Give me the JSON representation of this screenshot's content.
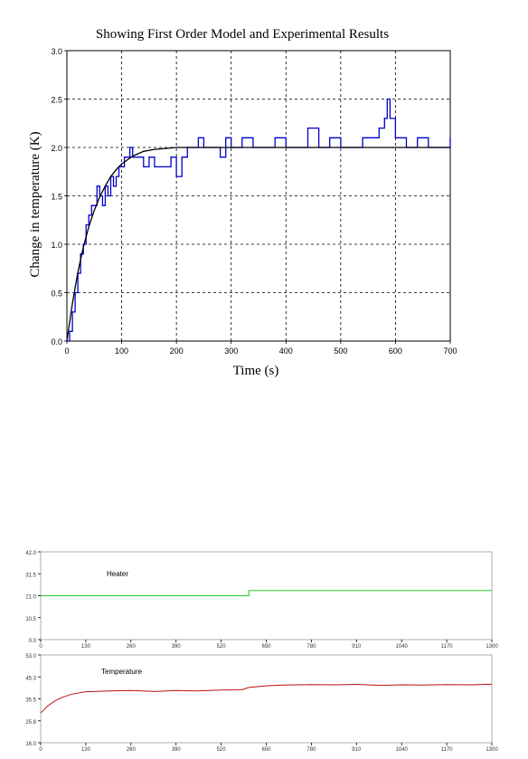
{
  "chart_data": [
    {
      "type": "line",
      "title": "Showing First Order Model and Experimental Results",
      "xlabel": "Time (s)",
      "ylabel": "Change in temperature (K)",
      "xlim": [
        0,
        700
      ],
      "ylim": [
        0,
        3.0
      ],
      "x_ticks": [
        "0",
        "100",
        "200",
        "300",
        "400",
        "500",
        "600",
        "700"
      ],
      "y_ticks": [
        "0.0",
        "0.5",
        "1.0",
        "1.5",
        "2.0",
        "2.5",
        "3.0"
      ],
      "grid": true,
      "series": [
        {
          "color": "#0000cc",
          "x": [
            0,
            5,
            10,
            15,
            20,
            25,
            30,
            35,
            40,
            45,
            50,
            55,
            60,
            65,
            70,
            75,
            80,
            85,
            90,
            95,
            100,
            105,
            110,
            115,
            120,
            130,
            140,
            150,
            160,
            170,
            180,
            190,
            200,
            210,
            220,
            230,
            240,
            250,
            260,
            270,
            280,
            290,
            300,
            320,
            340,
            360,
            380,
            400,
            420,
            440,
            460,
            480,
            500,
            520,
            540,
            560,
            570,
            580,
            585,
            590,
            600,
            620,
            640,
            660,
            680,
            700
          ],
          "y": [
            0.0,
            0.1,
            0.3,
            0.5,
            0.7,
            0.9,
            1.0,
            1.2,
            1.3,
            1.4,
            1.4,
            1.6,
            1.5,
            1.4,
            1.6,
            1.5,
            1.7,
            1.6,
            1.7,
            1.8,
            1.8,
            1.9,
            1.9,
            2.0,
            1.9,
            1.9,
            1.8,
            1.9,
            1.8,
            1.8,
            1.8,
            1.9,
            1.7,
            1.9,
            2.0,
            2.0,
            2.1,
            2.0,
            2.0,
            2.0,
            1.9,
            2.1,
            2.0,
            2.1,
            2.0,
            2.0,
            2.1,
            2.0,
            2.0,
            2.2,
            2.0,
            2.1,
            2.0,
            2.0,
            2.1,
            2.1,
            2.2,
            2.3,
            2.5,
            2.3,
            2.1,
            2.0,
            2.1,
            2.0,
            2.0,
            2.1
          ]
        },
        {
          "color": "#000000",
          "x": [
            0,
            10,
            20,
            30,
            40,
            50,
            60,
            70,
            80,
            90,
            100,
            120,
            140,
            160,
            180,
            200,
            250,
            300,
            400,
            500,
            600,
            700
          ],
          "y": [
            0.0,
            0.39,
            0.71,
            0.97,
            1.18,
            1.35,
            1.49,
            1.6,
            1.7,
            1.77,
            1.83,
            1.91,
            1.96,
            1.98,
            1.99,
            2.0,
            2.0,
            2.0,
            2.0,
            2.0,
            2.0,
            2.0
          ]
        }
      ]
    },
    {
      "type": "line",
      "label": "Heater",
      "xlim": [
        0,
        1300
      ],
      "ylim": [
        0,
        42.0
      ],
      "x_ticks": [
        "0",
        "130",
        "260",
        "390",
        "520",
        "650",
        "780",
        "910",
        "1040",
        "1170",
        "1300"
      ],
      "y_ticks": [
        "0.0",
        "10.5",
        "21.0",
        "31.5",
        "42.0"
      ],
      "grid": false,
      "series": [
        {
          "color": "#22cc22",
          "x": [
            0,
            600,
            600,
            1300
          ],
          "y": [
            21.0,
            21.0,
            23.5,
            23.5
          ]
        }
      ]
    },
    {
      "type": "line",
      "label": "Temperature",
      "xlim": [
        0,
        1300
      ],
      "ylim": [
        16.0,
        53.0
      ],
      "x_ticks": [
        "0",
        "130",
        "260",
        "390",
        "520",
        "650",
        "780",
        "910",
        "1040",
        "1170",
        "1300"
      ],
      "y_ticks": [
        "16.0",
        "25.8",
        "35.5",
        "45.3",
        "53.0"
      ],
      "grid": false,
      "series": [
        {
          "color": "#bb1111",
          "x": [
            0,
            20,
            40,
            60,
            90,
            130,
            200,
            260,
            330,
            390,
            450,
            520,
            580,
            600,
            650,
            700,
            780,
            850,
            910,
            980,
            1040,
            1100,
            1170,
            1240,
            1300
          ],
          "y": [
            28.5,
            31.5,
            33.5,
            35.0,
            36.5,
            37.5,
            37.8,
            38.0,
            37.6,
            38.0,
            37.8,
            38.2,
            38.3,
            39.3,
            40.0,
            40.3,
            40.5,
            40.4,
            40.6,
            40.2,
            40.4,
            40.3,
            40.5,
            40.4,
            40.7
          ]
        }
      ]
    }
  ]
}
